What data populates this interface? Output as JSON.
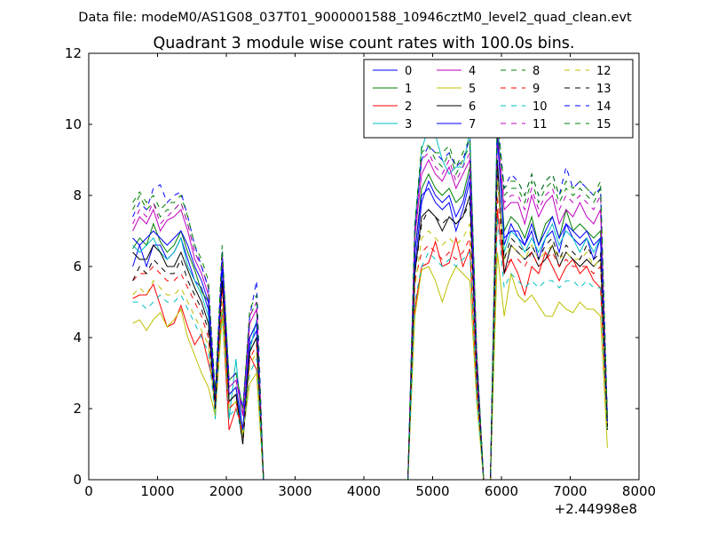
{
  "figure": {
    "suptitle": "Data file: modeM0/AS1G08_037T01_9000001588_10946cztM0_level2_quad_clean.evt"
  },
  "chart_data": {
    "type": "line",
    "title": "Quadrant 3 module wise count rates with 100.0s bins.",
    "xlabel": "",
    "ylabel": "",
    "xlim": [
      0,
      8000
    ],
    "ylim": [
      0,
      12
    ],
    "x_offset_label": "+2.44998e8",
    "xticks": [
      0,
      1000,
      2000,
      3000,
      4000,
      5000,
      6000,
      7000,
      8000
    ],
    "yticks": [
      0,
      2,
      4,
      6,
      8,
      10,
      12
    ],
    "grid": false,
    "legend_position": "upper-right",
    "x": [
      640,
      740,
      840,
      940,
      1040,
      1140,
      1240,
      1340,
      1440,
      1540,
      1640,
      1740,
      1840,
      1940,
      2040,
      2140,
      2240,
      2340,
      2440,
      2540,
      2640,
      2740,
      2840,
      2940,
      3040,
      3140,
      3240,
      3340,
      3440,
      3540,
      3640,
      3740,
      3840,
      3940,
      4040,
      4140,
      4240,
      4340,
      4440,
      4540,
      4640,
      4740,
      4840,
      4940,
      5040,
      5140,
      5240,
      5340,
      5440,
      5540,
      5640,
      5740,
      5840,
      5940,
      6040,
      6140,
      6240,
      6340,
      6440,
      6540,
      6640,
      6740,
      6840,
      6940,
      7040,
      7140,
      7240,
      7340,
      7440,
      7540
    ],
    "series": [
      {
        "name": "0",
        "color": "#0000ff",
        "dash": false,
        "values": [
          6.0,
          6.6,
          6.0,
          6.6,
          6.6,
          6.2,
          6.4,
          6.8,
          6.2,
          5.6,
          5.4,
          4.8,
          1.9,
          6.2,
          2.2,
          2.4,
          1.2,
          3.8,
          4.2,
          0,
          0,
          0,
          0,
          0,
          0,
          0,
          0,
          0,
          0,
          0,
          0,
          0,
          0,
          0,
          0,
          0,
          0,
          0,
          0,
          0,
          0,
          6.0,
          7.8,
          8.4,
          8.0,
          7.8,
          8.0,
          7.4,
          7.8,
          8.6,
          3.0,
          0,
          0,
          10.0,
          6.6,
          7.2,
          6.8,
          6.6,
          7.0,
          6.2,
          6.8,
          7.0,
          6.4,
          7.2,
          6.8,
          6.6,
          6.8,
          6.2,
          6.8,
          1.6
        ]
      },
      {
        "name": "1",
        "color": "#008000",
        "dash": false,
        "values": [
          6.5,
          6.8,
          6.6,
          7.2,
          6.7,
          6.4,
          6.6,
          7.0,
          6.4,
          5.9,
          5.3,
          5.0,
          2.0,
          6.0,
          2.4,
          2.6,
          1.4,
          4.0,
          4.4,
          0,
          0,
          0,
          0,
          0,
          0,
          0,
          0,
          0,
          0,
          0,
          0,
          0,
          0,
          0,
          0,
          0,
          0,
          0,
          0,
          0,
          0,
          6.4,
          8.2,
          8.6,
          8.2,
          8.0,
          8.2,
          7.8,
          8.0,
          8.8,
          3.2,
          0,
          0,
          9.8,
          7.0,
          7.4,
          7.2,
          6.8,
          7.4,
          6.6,
          7.2,
          7.4,
          6.8,
          7.6,
          7.0,
          7.2,
          7.0,
          6.8,
          7.0,
          1.5
        ]
      },
      {
        "name": "2",
        "color": "#ff0000",
        "dash": false,
        "values": [
          5.1,
          5.2,
          5.2,
          5.5,
          4.9,
          4.3,
          4.4,
          4.9,
          4.3,
          3.8,
          4.1,
          3.3,
          2.5,
          4.8,
          1.4,
          2.0,
          1.4,
          3.5,
          3.1,
          0,
          0,
          0,
          0,
          0,
          0,
          0,
          0,
          0,
          0,
          0,
          0,
          0,
          0,
          0,
          0,
          0,
          0,
          0,
          0,
          0,
          0,
          4.8,
          6.0,
          6.1,
          6.7,
          6.0,
          6.1,
          6.8,
          6.0,
          6.5,
          2.5,
          0,
          0,
          7.6,
          5.8,
          6.2,
          5.8,
          5.2,
          6.0,
          5.8,
          6.4,
          6.0,
          5.6,
          6.0,
          6.2,
          5.8,
          6.0,
          5.6,
          5.4,
          1.4
        ]
      },
      {
        "name": "3",
        "color": "#00bfbf",
        "dash": false,
        "values": [
          6.6,
          6.4,
          6.6,
          6.8,
          6.4,
          6.2,
          6.4,
          6.8,
          6.0,
          5.6,
          5.2,
          4.6,
          1.7,
          6.2,
          1.7,
          3.4,
          1.2,
          3.6,
          4.5,
          0,
          0,
          0,
          0,
          0,
          0,
          0,
          0,
          0,
          0,
          0,
          0,
          0,
          0,
          0,
          0,
          0,
          0,
          0,
          0,
          0,
          0,
          7.2,
          9.3,
          9.9,
          9.7,
          9.0,
          8.6,
          8.8,
          8.8,
          9.8,
          3.5,
          0,
          0,
          10.5,
          6.4,
          7.0,
          6.8,
          6.4,
          6.8,
          6.4,
          6.8,
          7.2,
          6.6,
          7.0,
          6.8,
          6.4,
          6.8,
          6.4,
          6.8,
          1.5
        ]
      },
      {
        "name": "4",
        "color": "#bf00bf",
        "dash": false,
        "values": [
          7.0,
          7.4,
          7.2,
          7.6,
          7.0,
          7.3,
          7.4,
          7.6,
          7.0,
          6.2,
          5.8,
          5.2,
          2.3,
          6.2,
          2.6,
          2.8,
          1.8,
          4.4,
          4.8,
          0,
          0,
          0,
          0,
          0,
          0,
          0,
          0,
          0,
          0,
          0,
          0,
          0,
          0,
          0,
          0,
          0,
          0,
          0,
          0,
          0,
          0,
          6.8,
          8.6,
          9.0,
          8.6,
          8.4,
          8.8,
          8.2,
          8.6,
          9.0,
          3.4,
          0,
          0,
          9.6,
          7.6,
          7.8,
          7.8,
          7.2,
          8.0,
          7.4,
          7.8,
          8.0,
          7.2,
          7.6,
          7.4,
          7.8,
          7.4,
          7.2,
          7.6,
          1.6
        ]
      },
      {
        "name": "5",
        "color": "#bfbf00",
        "dash": false,
        "values": [
          4.4,
          4.5,
          4.2,
          4.5,
          4.7,
          4.3,
          4.5,
          4.8,
          4.0,
          3.5,
          3.0,
          2.6,
          1.8,
          4.6,
          2.0,
          2.2,
          1.3,
          2.7,
          3.0,
          0,
          0,
          0,
          0,
          0,
          0,
          0,
          0,
          0,
          0,
          0,
          0,
          0,
          0,
          0,
          0,
          0,
          0,
          0,
          0,
          0,
          0,
          4.6,
          5.9,
          6.0,
          5.6,
          5.0,
          5.6,
          6.0,
          5.8,
          5.6,
          2.2,
          0,
          0,
          6.4,
          4.6,
          5.8,
          5.2,
          5.0,
          5.2,
          4.9,
          4.6,
          4.6,
          5.0,
          4.8,
          4.7,
          5.0,
          4.8,
          4.8,
          4.6,
          0.9
        ]
      },
      {
        "name": "6",
        "color": "#000000",
        "dash": false,
        "values": [
          6.4,
          6.2,
          6.2,
          6.6,
          6.4,
          6.0,
          6.0,
          6.4,
          5.9,
          5.4,
          5.0,
          4.4,
          2.2,
          5.6,
          2.2,
          2.4,
          1.0,
          3.6,
          4.0,
          0,
          0,
          0,
          0,
          0,
          0,
          0,
          0,
          0,
          0,
          0,
          0,
          0,
          0,
          0,
          0,
          0,
          0,
          0,
          0,
          0,
          0,
          5.8,
          7.4,
          7.6,
          7.4,
          7.0,
          7.4,
          7.2,
          7.4,
          8.0,
          3.0,
          0,
          0,
          9.0,
          5.8,
          6.6,
          6.4,
          6.2,
          6.4,
          6.0,
          6.2,
          6.6,
          6.0,
          6.4,
          6.2,
          6.0,
          6.2,
          6.0,
          6.2,
          1.4
        ]
      },
      {
        "name": "7",
        "color": "#0000ff",
        "dash": false,
        "values": [
          6.8,
          6.6,
          6.8,
          7.0,
          6.8,
          6.6,
          6.8,
          7.0,
          6.6,
          6.0,
          5.6,
          5.0,
          2.0,
          6.0,
          2.4,
          2.6,
          1.4,
          4.0,
          4.4,
          0,
          0,
          0,
          0,
          0,
          0,
          0,
          0,
          0,
          0,
          0,
          0,
          0,
          0,
          0,
          0,
          0,
          0,
          0,
          0,
          0,
          0,
          6.4,
          8.0,
          8.2,
          7.8,
          7.6,
          7.8,
          7.0,
          7.6,
          8.4,
          3.0,
          0,
          0,
          9.6,
          6.8,
          7.0,
          7.0,
          6.6,
          7.2,
          6.6,
          7.0,
          7.4,
          6.8,
          7.2,
          7.0,
          6.8,
          7.0,
          6.6,
          6.8,
          1.6
        ]
      },
      {
        "name": "8",
        "color": "#008000",
        "dash": true,
        "values": [
          7.6,
          8.0,
          7.6,
          7.8,
          7.4,
          7.6,
          7.6,
          7.8,
          7.2,
          6.4,
          6.0,
          5.4,
          2.4,
          6.4,
          2.8,
          3.0,
          2.0,
          4.6,
          5.0,
          0,
          0,
          0,
          0,
          0,
          0,
          0,
          0,
          0,
          0,
          0,
          0,
          0,
          0,
          0,
          0,
          0,
          0,
          0,
          0,
          0,
          0,
          7.0,
          9.2,
          9.4,
          9.0,
          8.8,
          9.2,
          8.6,
          9.0,
          9.4,
          3.6,
          0,
          0,
          10.0,
          8.0,
          8.2,
          8.2,
          7.8,
          8.4,
          7.8,
          8.2,
          8.4,
          7.8,
          8.2,
          8.0,
          8.2,
          8.0,
          7.8,
          8.2,
          1.7
        ]
      },
      {
        "name": "9",
        "color": "#ff0000",
        "dash": true,
        "values": [
          5.6,
          5.8,
          5.8,
          6.0,
          5.8,
          5.6,
          5.6,
          5.8,
          5.4,
          5.0,
          4.6,
          4.0,
          2.0,
          5.4,
          2.0,
          2.2,
          1.2,
          3.4,
          3.8,
          0,
          0,
          0,
          0,
          0,
          0,
          0,
          0,
          0,
          0,
          0,
          0,
          0,
          0,
          0,
          0,
          0,
          0,
          0,
          0,
          0,
          0,
          5.6,
          6.4,
          6.6,
          6.4,
          6.2,
          6.4,
          6.2,
          6.4,
          6.8,
          2.6,
          0,
          0,
          8.0,
          6.0,
          6.2,
          6.2,
          6.0,
          6.4,
          6.0,
          6.2,
          6.4,
          6.0,
          6.2,
          6.0,
          6.0,
          6.0,
          5.8,
          6.0,
          1.4
        ]
      },
      {
        "name": "10",
        "color": "#00bfbf",
        "dash": true,
        "values": [
          5.0,
          5.0,
          4.8,
          5.0,
          5.2,
          5.0,
          5.0,
          5.2,
          4.8,
          4.4,
          4.0,
          3.6,
          1.8,
          4.8,
          1.8,
          2.0,
          1.2,
          3.0,
          3.4,
          0,
          0,
          0,
          0,
          0,
          0,
          0,
          0,
          0,
          0,
          0,
          0,
          0,
          0,
          0,
          0,
          0,
          0,
          0,
          0,
          0,
          0,
          5.0,
          6.0,
          6.4,
          6.2,
          6.0,
          6.2,
          6.0,
          6.2,
          6.4,
          2.4,
          0,
          0,
          7.4,
          5.4,
          5.8,
          5.6,
          5.4,
          5.6,
          5.4,
          5.6,
          5.6,
          5.4,
          5.6,
          5.6,
          5.4,
          5.6,
          5.4,
          5.4,
          1.3
        ]
      },
      {
        "name": "11",
        "color": "#bf00bf",
        "dash": true,
        "values": [
          7.2,
          7.6,
          7.4,
          7.8,
          7.2,
          7.4,
          7.6,
          7.8,
          7.2,
          6.4,
          6.0,
          5.4,
          2.4,
          6.4,
          2.8,
          3.0,
          1.8,
          4.6,
          5.0,
          0,
          0,
          0,
          0,
          0,
          0,
          0,
          0,
          0,
          0,
          0,
          0,
          0,
          0,
          0,
          0,
          0,
          0,
          0,
          0,
          0,
          0,
          7.0,
          9.0,
          9.2,
          8.8,
          8.6,
          9.0,
          8.4,
          8.8,
          9.2,
          3.5,
          0,
          0,
          9.8,
          7.8,
          8.0,
          8.0,
          7.6,
          8.2,
          7.6,
          8.0,
          8.2,
          7.6,
          8.0,
          7.8,
          8.0,
          7.8,
          7.6,
          8.0,
          1.7
        ]
      },
      {
        "name": "12",
        "color": "#bfbf00",
        "dash": true,
        "values": [
          5.2,
          5.4,
          5.2,
          5.6,
          5.4,
          5.2,
          5.2,
          5.4,
          5.0,
          4.6,
          4.2,
          3.8,
          1.9,
          5.0,
          2.0,
          2.2,
          1.2,
          3.2,
          3.6,
          0,
          0,
          0,
          0,
          0,
          0,
          0,
          0,
          0,
          0,
          0,
          0,
          0,
          0,
          0,
          0,
          0,
          0,
          0,
          0,
          0,
          0,
          5.4,
          6.8,
          7.0,
          6.8,
          6.6,
          6.8,
          6.6,
          6.8,
          7.2,
          2.8,
          0,
          0,
          8.4,
          6.2,
          6.6,
          6.4,
          6.2,
          6.6,
          6.2,
          6.4,
          6.6,
          6.2,
          6.4,
          6.2,
          6.2,
          6.4,
          6.0,
          6.2,
          1.4
        ]
      },
      {
        "name": "13",
        "color": "#000000",
        "dash": true,
        "values": [
          5.6,
          6.0,
          5.8,
          6.2,
          6.0,
          5.8,
          5.8,
          6.2,
          5.6,
          5.2,
          4.8,
          4.2,
          2.0,
          5.6,
          2.2,
          2.4,
          1.0,
          3.6,
          4.0,
          0,
          0,
          0,
          0,
          0,
          0,
          0,
          0,
          0,
          0,
          0,
          0,
          0,
          0,
          0,
          0,
          0,
          0,
          0,
          0,
          0,
          0,
          5.8,
          7.2,
          7.6,
          7.4,
          7.2,
          7.4,
          7.2,
          7.4,
          7.8,
          3.0,
          0,
          0,
          8.8,
          6.2,
          6.8,
          6.6,
          6.4,
          6.6,
          6.2,
          6.6,
          6.8,
          6.2,
          6.6,
          6.4,
          6.2,
          6.6,
          6.2,
          6.4,
          1.5
        ]
      },
      {
        "name": "14",
        "color": "#0000ff",
        "dash": true,
        "values": [
          7.4,
          7.8,
          7.6,
          8.2,
          8.3,
          7.8,
          8.0,
          8.1,
          7.4,
          6.6,
          6.0,
          5.4,
          2.4,
          6.4,
          2.8,
          3.0,
          2.0,
          4.6,
          5.6,
          0,
          0,
          0,
          0,
          0,
          0,
          0,
          0,
          0,
          0,
          0,
          0,
          0,
          0,
          0,
          0,
          0,
          0,
          0,
          0,
          0,
          0,
          7.0,
          9.0,
          9.4,
          9.2,
          9.0,
          9.2,
          8.8,
          9.0,
          9.6,
          3.6,
          0,
          0,
          10.2,
          8.2,
          8.6,
          8.4,
          8.0,
          8.6,
          8.0,
          8.4,
          8.6,
          8.0,
          8.8,
          8.2,
          8.4,
          8.2,
          8.0,
          8.2,
          1.8
        ]
      },
      {
        "name": "15",
        "color": "#008000",
        "dash": true,
        "values": [
          7.8,
          8.1,
          7.8,
          8.0,
          7.6,
          7.8,
          7.8,
          8.0,
          7.4,
          6.6,
          6.2,
          5.6,
          2.4,
          6.6,
          2.8,
          3.0,
          2.0,
          4.8,
          5.2,
          0,
          0,
          0,
          0,
          0,
          0,
          0,
          0,
          0,
          0,
          0,
          0,
          0,
          0,
          0,
          0,
          0,
          0,
          0,
          0,
          0,
          0,
          7.2,
          9.4,
          9.4,
          9.2,
          9.2,
          9.4,
          8.8,
          9.2,
          9.6,
          3.7,
          0,
          0,
          10.2,
          8.2,
          8.4,
          8.4,
          8.0,
          8.6,
          8.0,
          8.4,
          8.6,
          8.0,
          8.4,
          8.2,
          8.4,
          8.2,
          8.0,
          8.4,
          1.7
        ]
      }
    ]
  }
}
